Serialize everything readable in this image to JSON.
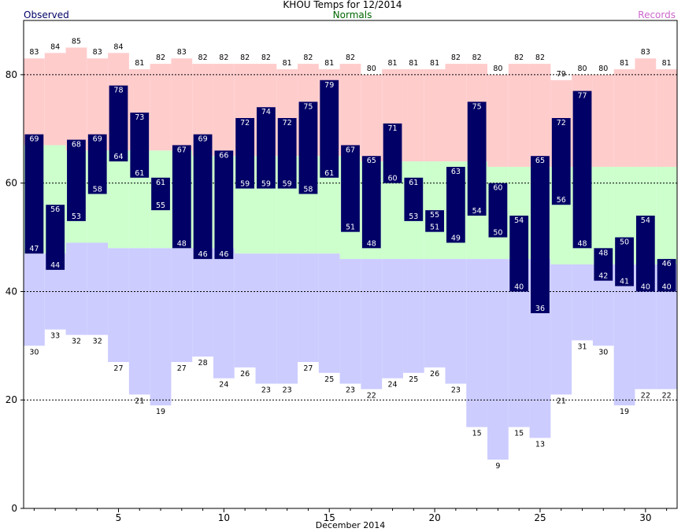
{
  "header": {
    "title": "KHOU Temps for  12/2014",
    "observed_label": "Observed",
    "normals_label": "Normals",
    "records_label": "Records"
  },
  "colors": {
    "observed": "#000066",
    "normals": "#ccffcc",
    "records": "#ffcccc",
    "record_low_fill": "#ccccff",
    "observed_title": "#000066",
    "normals_title": "#006600",
    "records_title": "#cc66cc"
  },
  "chart_data": {
    "type": "bar",
    "title": "KHOU Temps for  12/2014",
    "xlabel": "December 2014",
    "ylabel": "",
    "xlim": [
      0.5,
      31.5
    ],
    "ylim": [
      0,
      90
    ],
    "x_ticks": [
      5,
      10,
      15,
      20,
      25,
      30
    ],
    "y_ticks": [
      0,
      20,
      40,
      60,
      80
    ],
    "grid": "dashed horizontal lines at 20, 40, 60, 80",
    "days": [
      1,
      2,
      3,
      4,
      5,
      6,
      7,
      8,
      9,
      10,
      11,
      12,
      13,
      14,
      15,
      16,
      17,
      18,
      19,
      20,
      21,
      22,
      23,
      24,
      25,
      26,
      27,
      28,
      29,
      30,
      31
    ],
    "series": [
      {
        "name": "Observed High",
        "values": [
          69,
          56,
          68,
          69,
          78,
          73,
          61,
          67,
          69,
          66,
          72,
          74,
          72,
          75,
          79,
          67,
          65,
          71,
          61,
          55,
          63,
          75,
          60,
          54,
          65,
          72,
          77,
          48,
          50,
          54,
          46
        ]
      },
      {
        "name": "Observed Low",
        "values": [
          47,
          44,
          53,
          58,
          64,
          61,
          55,
          48,
          46,
          46,
          59,
          59,
          59,
          58,
          61,
          51,
          48,
          60,
          53,
          51,
          49,
          54,
          50,
          40,
          36,
          56,
          48,
          42,
          41,
          40,
          40
        ]
      },
      {
        "name": "Record High",
        "values": [
          83,
          84,
          85,
          83,
          84,
          81,
          82,
          83,
          82,
          82,
          82,
          82,
          81,
          82,
          81,
          82,
          80,
          81,
          81,
          81,
          82,
          82,
          80,
          82,
          82,
          79,
          80,
          80,
          81,
          83,
          81
        ]
      },
      {
        "name": "Record Low",
        "values": [
          30,
          33,
          32,
          32,
          27,
          21,
          19,
          27,
          28,
          24,
          26,
          23,
          23,
          27,
          25,
          23,
          22,
          24,
          25,
          26,
          23,
          15,
          9,
          15,
          13,
          21,
          31,
          30,
          19,
          22,
          22
        ]
      },
      {
        "name": "Normal High",
        "values": [
          67,
          67,
          66,
          66,
          66,
          66,
          66,
          66,
          65,
          65,
          65,
          65,
          65,
          65,
          65,
          65,
          64,
          64,
          64,
          64,
          64,
          64,
          63,
          63,
          63,
          63,
          63,
          63,
          63,
          63,
          63
        ]
      },
      {
        "name": "Normal Low",
        "values": [
          47,
          47,
          49,
          49,
          48,
          48,
          48,
          48,
          48,
          48,
          47,
          47,
          47,
          47,
          47,
          46,
          46,
          46,
          46,
          46,
          46,
          46,
          46,
          46,
          46,
          45,
          45,
          45,
          45,
          45,
          45
        ]
      }
    ]
  }
}
